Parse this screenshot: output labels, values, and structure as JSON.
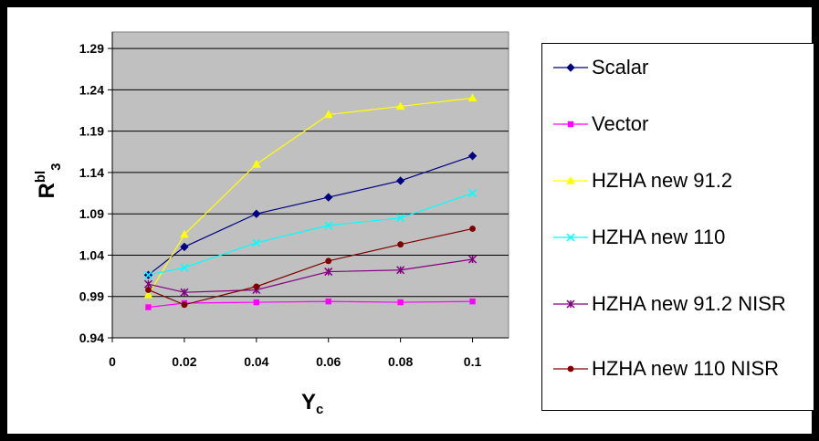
{
  "chart_data": {
    "type": "line",
    "ylabel_main": "R",
    "ylabel_sup": "bl",
    "ylabel_sub": "3",
    "xlabel_main": "Y",
    "xlabel_sub": "c",
    "xlim": [
      0,
      0.11
    ],
    "ylim": [
      0.94,
      1.31
    ],
    "x_ticks": [
      "0",
      "0.02",
      "0.04",
      "0.06",
      "0.08",
      "0.1"
    ],
    "x_tick_values": [
      0,
      0.02,
      0.04,
      0.06,
      0.08,
      0.1
    ],
    "y_ticks": [
      "0.94",
      "0.99",
      "1.04",
      "1.09",
      "1.14",
      "1.19",
      "1.24",
      "1.29"
    ],
    "y_tick_values": [
      0.94,
      0.99,
      1.04,
      1.09,
      1.14,
      1.19,
      1.24,
      1.29
    ],
    "grid": true,
    "plot_background": "#c0c0c0",
    "legend_position": "right",
    "x": [
      0.01,
      0.02,
      0.04,
      0.06,
      0.08,
      0.1
    ],
    "series": [
      {
        "name": "Scalar",
        "color": "#000080",
        "marker": "diamond",
        "values": [
          1.016,
          1.05,
          1.09,
          1.11,
          1.13,
          1.16
        ]
      },
      {
        "name": "Vector",
        "color": "#ff00ff",
        "marker": "square",
        "values": [
          0.977,
          0.982,
          0.983,
          0.984,
          0.983,
          0.984
        ]
      },
      {
        "name": "HZHA new 91.2",
        "color": "#ffff00",
        "marker": "triangle",
        "values": [
          0.992,
          1.065,
          1.15,
          1.21,
          1.22,
          1.23
        ]
      },
      {
        "name": "HZHA new 110",
        "color": "#00ffff",
        "marker": "x",
        "values": [
          1.016,
          1.025,
          1.055,
          1.076,
          1.085,
          1.115
        ]
      },
      {
        "name": "HZHA new 91.2 NISR",
        "color": "#800080",
        "marker": "star",
        "values": [
          1.005,
          0.995,
          0.998,
          1.02,
          1.022,
          1.035
        ]
      },
      {
        "name": "HZHA new 110 NISR",
        "color": "#800000",
        "marker": "circle",
        "values": [
          0.998,
          0.98,
          1.002,
          1.033,
          1.053,
          1.072
        ]
      }
    ]
  }
}
